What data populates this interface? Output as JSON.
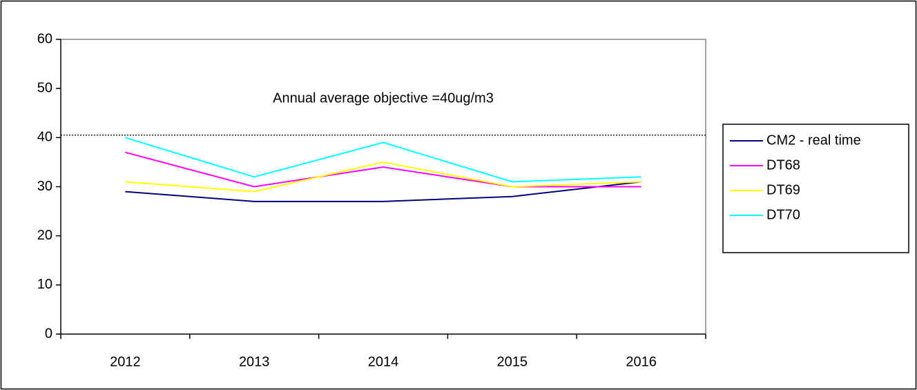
{
  "chart_data": {
    "type": "line",
    "annotation": "Annual average objective =40ug/m3",
    "reference_line": 40.5,
    "categories": [
      "2012",
      "2013",
      "2014",
      "2015",
      "2016"
    ],
    "series": [
      {
        "name": "CM2 - real time",
        "color": "#000080",
        "values": [
          29,
          27,
          27,
          28,
          31
        ]
      },
      {
        "name": "DT68",
        "color": "#ff00ff",
        "values": [
          37,
          30,
          34,
          30,
          30
        ]
      },
      {
        "name": "DT69",
        "color": "#ffff00",
        "values": [
          31,
          29,
          35,
          30,
          31
        ]
      },
      {
        "name": "DT70",
        "color": "#00ffff",
        "values": [
          40,
          32,
          39,
          31,
          32
        ]
      }
    ],
    "ylim": [
      0,
      60
    ],
    "yticks": [
      0,
      10,
      20,
      30,
      40,
      50,
      60
    ],
    "legend": "right"
  }
}
